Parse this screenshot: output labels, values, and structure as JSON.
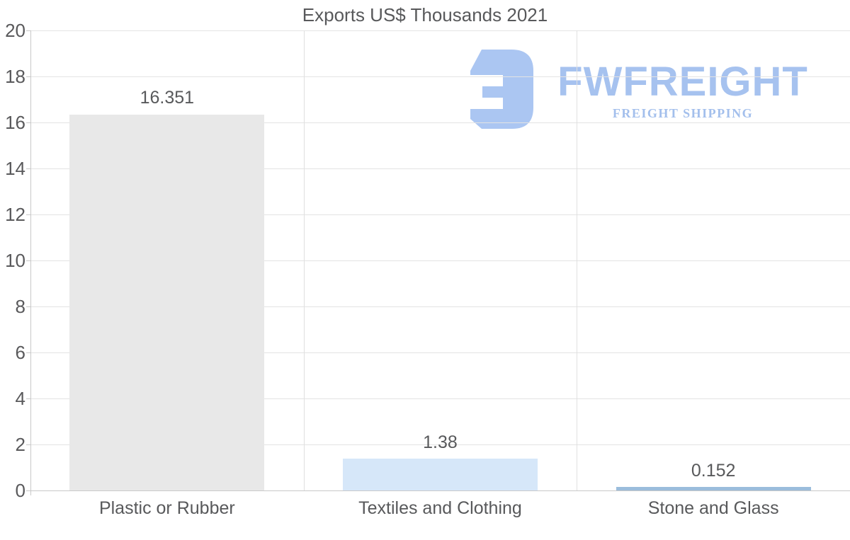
{
  "chart_data": {
    "type": "bar",
    "title": "Exports US$ Thousands 2021",
    "categories": [
      "Plastic or Rubber",
      "Textiles and Clothing",
      "Stone and Glass"
    ],
    "values": [
      16.351,
      1.38,
      0.152
    ],
    "value_labels": [
      "16.351",
      "1.38",
      "0.152"
    ],
    "bar_colors": [
      "#e8e8e8",
      "#d6e7f9",
      "#9bbddc"
    ],
    "xlabel": "",
    "ylabel": "",
    "ylim": [
      0,
      20
    ],
    "yticks": [
      0,
      2,
      4,
      6,
      8,
      10,
      12,
      14,
      16,
      18,
      20
    ],
    "grid": true,
    "legend": false
  },
  "logo": {
    "brand": "FWFREIGHT",
    "tagline": "FREIGHT SHIPPING"
  },
  "colors": {
    "background": "#ffffff",
    "logo_blue": "#abc6f2",
    "brand_text_blue": "#a6c2ef",
    "gridline": "#e3e3e3",
    "axis_line": "#c9c9c9",
    "text_gray": "#58595b"
  }
}
